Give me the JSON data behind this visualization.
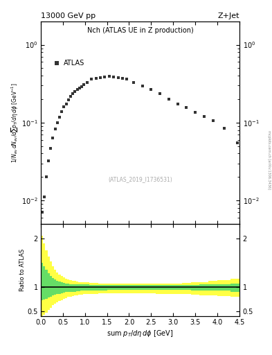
{
  "title_left": "13000 GeV pp",
  "title_right": "Z+Jet",
  "plot_title": "Nch (ATLAS UE in Z production)",
  "legend_label": "ATLAS",
  "ylabel": "1/N_{ev} dN_{ev}/dsum p_{T}/d\\eta d\\phi  [GeV]",
  "ratio_ylabel": "Ratio to ATLAS",
  "xlabel": "sum p_{T}/d\\eta d\\phi  [GeV]",
  "watermark": "(ATLAS_2019_I1736531)",
  "side_text": "mcplots.cern.ch [arXiv:1306.3436]",
  "data_x": [
    0.025,
    0.075,
    0.125,
    0.175,
    0.225,
    0.275,
    0.325,
    0.375,
    0.425,
    0.475,
    0.525,
    0.575,
    0.625,
    0.675,
    0.725,
    0.775,
    0.825,
    0.875,
    0.925,
    0.975,
    1.05,
    1.15,
    1.25,
    1.35,
    1.45,
    1.55,
    1.65,
    1.75,
    1.85,
    1.95,
    2.1,
    2.3,
    2.5,
    2.7,
    2.9,
    3.1,
    3.3,
    3.5,
    3.7,
    3.9,
    4.15,
    4.45
  ],
  "data_y": [
    0.007,
    0.011,
    0.02,
    0.032,
    0.047,
    0.063,
    0.082,
    0.1,
    0.118,
    0.138,
    0.158,
    0.175,
    0.195,
    0.215,
    0.235,
    0.252,
    0.268,
    0.28,
    0.29,
    0.31,
    0.33,
    0.36,
    0.37,
    0.38,
    0.385,
    0.39,
    0.385,
    0.38,
    0.37,
    0.36,
    0.33,
    0.295,
    0.265,
    0.235,
    0.2,
    0.175,
    0.155,
    0.135,
    0.12,
    0.105,
    0.085,
    0.055
  ],
  "marker_color": "#333333",
  "marker_size": 3.5,
  "xlim": [
    0,
    4.5
  ],
  "ylim_log": [
    0.005,
    2.0
  ],
  "ylim_ratio": [
    0.4,
    2.3
  ],
  "band_edges": [
    0.0,
    0.05,
    0.1,
    0.15,
    0.2,
    0.25,
    0.3,
    0.35,
    0.4,
    0.45,
    0.5,
    0.55,
    0.6,
    0.65,
    0.7,
    0.75,
    0.8,
    0.85,
    0.9,
    0.95,
    1.0,
    1.1,
    1.2,
    1.3,
    1.4,
    1.5,
    1.6,
    1.7,
    1.8,
    1.9,
    2.0,
    2.2,
    2.4,
    2.6,
    2.8,
    3.0,
    3.2,
    3.4,
    3.6,
    3.8,
    4.0,
    4.3,
    4.5
  ],
  "green_upper": [
    1.5,
    1.42,
    1.35,
    1.28,
    1.23,
    1.18,
    1.15,
    1.13,
    1.11,
    1.09,
    1.08,
    1.07,
    1.07,
    1.06,
    1.06,
    1.06,
    1.05,
    1.05,
    1.05,
    1.05,
    1.05,
    1.04,
    1.04,
    1.04,
    1.04,
    1.04,
    1.04,
    1.04,
    1.04,
    1.04,
    1.04,
    1.04,
    1.04,
    1.04,
    1.04,
    1.04,
    1.04,
    1.04,
    1.05,
    1.05,
    1.06,
    1.07
  ],
  "green_lower": [
    0.72,
    0.74,
    0.76,
    0.78,
    0.8,
    0.82,
    0.84,
    0.85,
    0.86,
    0.87,
    0.88,
    0.89,
    0.89,
    0.9,
    0.9,
    0.9,
    0.91,
    0.91,
    0.92,
    0.92,
    0.92,
    0.93,
    0.93,
    0.93,
    0.93,
    0.94,
    0.94,
    0.94,
    0.94,
    0.94,
    0.94,
    0.94,
    0.94,
    0.94,
    0.94,
    0.94,
    0.94,
    0.93,
    0.93,
    0.92,
    0.92,
    0.9
  ],
  "yellow_upper": [
    2.05,
    1.9,
    1.75,
    1.62,
    1.52,
    1.43,
    1.36,
    1.3,
    1.26,
    1.22,
    1.19,
    1.17,
    1.15,
    1.14,
    1.13,
    1.12,
    1.11,
    1.1,
    1.1,
    1.09,
    1.09,
    1.08,
    1.08,
    1.07,
    1.07,
    1.07,
    1.07,
    1.07,
    1.07,
    1.07,
    1.07,
    1.07,
    1.07,
    1.07,
    1.07,
    1.07,
    1.08,
    1.09,
    1.1,
    1.12,
    1.14,
    1.17
  ],
  "yellow_lower": [
    0.38,
    0.42,
    0.47,
    0.52,
    0.57,
    0.62,
    0.65,
    0.68,
    0.71,
    0.73,
    0.75,
    0.77,
    0.79,
    0.8,
    0.81,
    0.82,
    0.83,
    0.84,
    0.84,
    0.85,
    0.85,
    0.86,
    0.86,
    0.87,
    0.87,
    0.87,
    0.87,
    0.87,
    0.87,
    0.87,
    0.87,
    0.87,
    0.87,
    0.86,
    0.86,
    0.85,
    0.85,
    0.84,
    0.83,
    0.82,
    0.81,
    0.8
  ],
  "green_color": "#66dd66",
  "yellow_color": "#ffff44",
  "line_color": "#000000",
  "bg_color": "#ffffff"
}
